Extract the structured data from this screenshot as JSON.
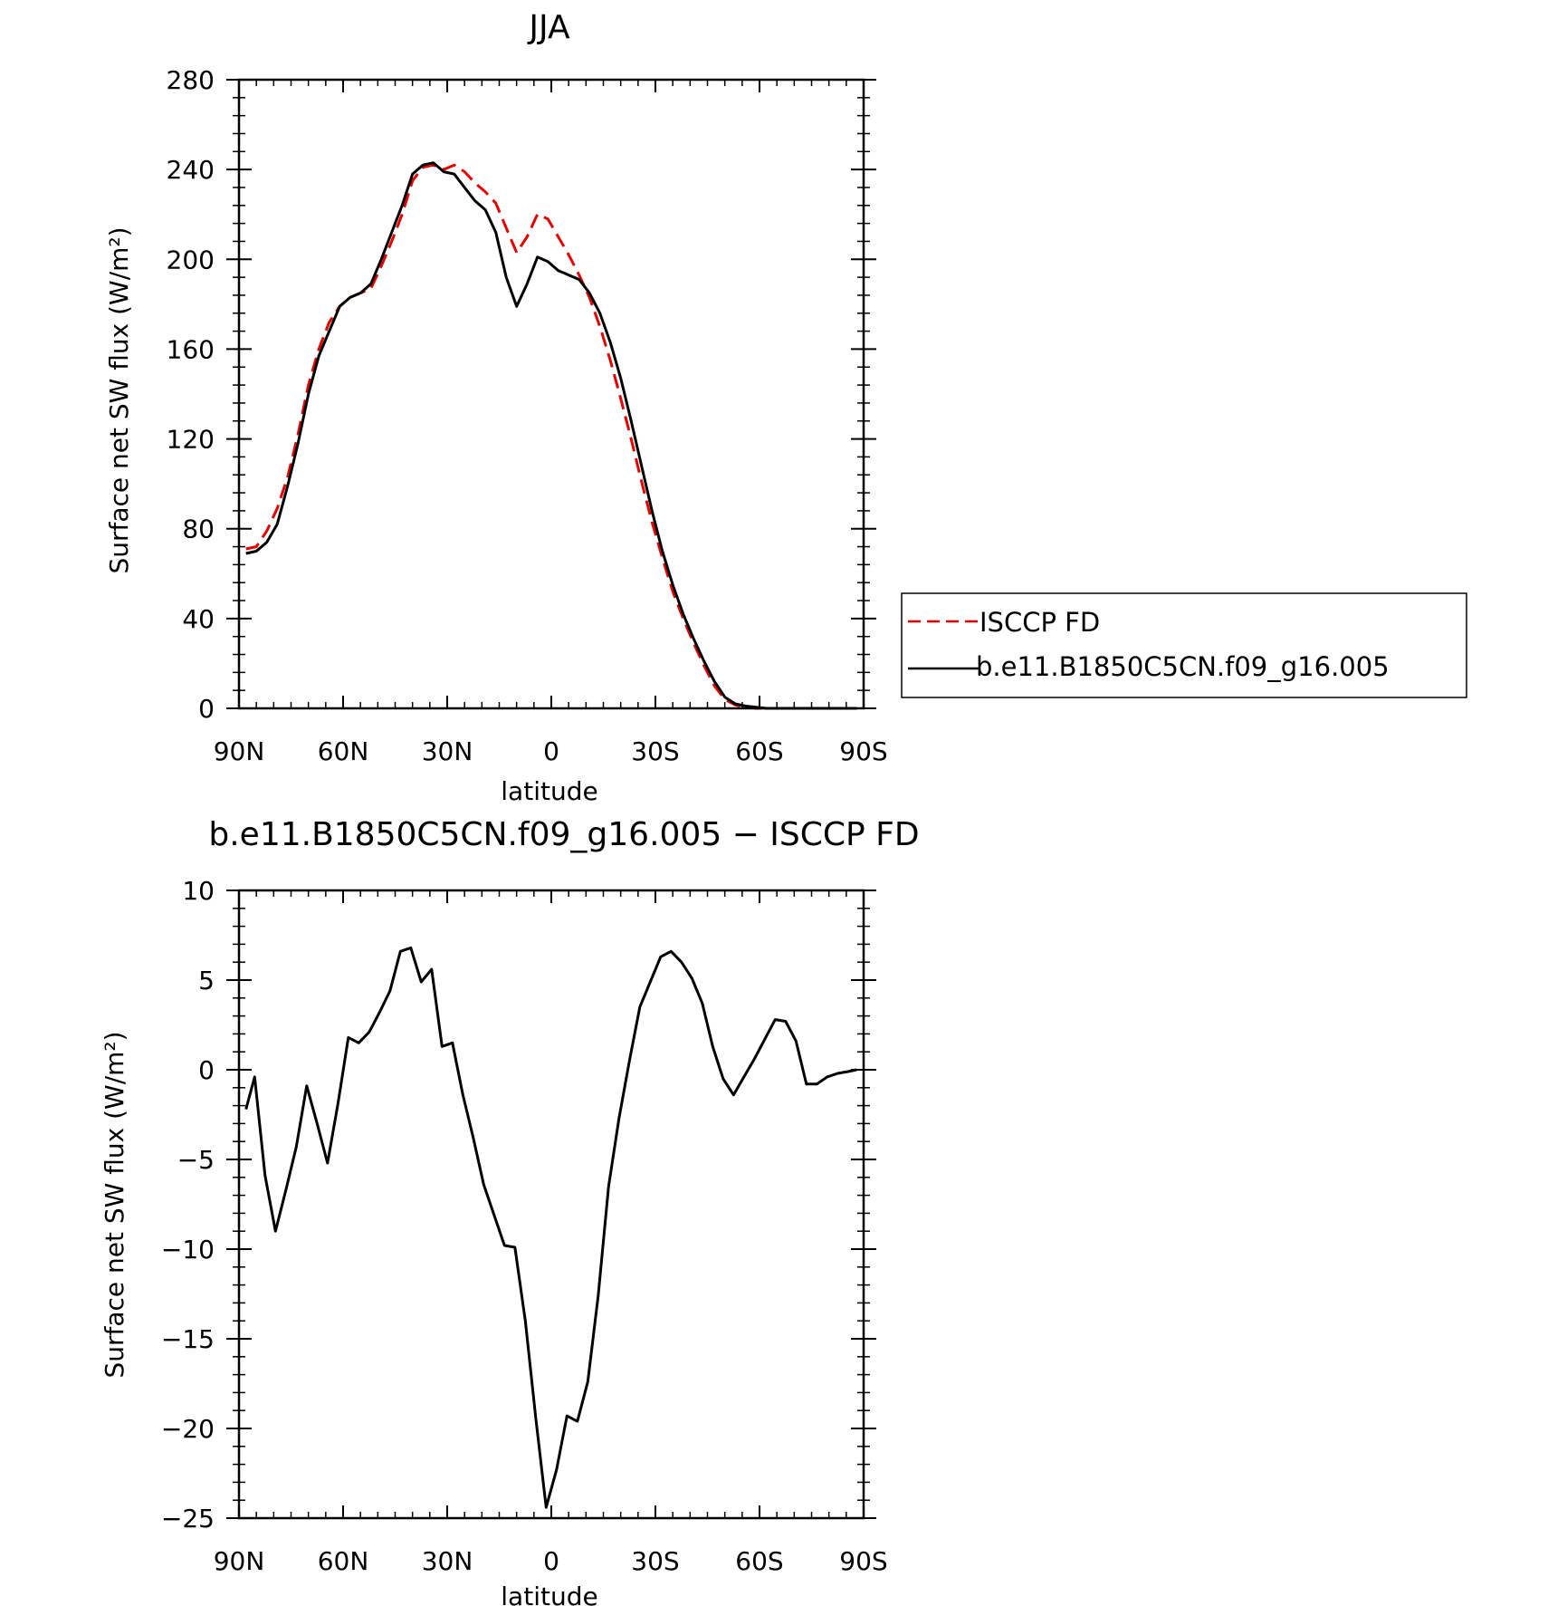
{
  "chart_data": [
    {
      "type": "line",
      "title": "JJA",
      "xlabel": "latitude",
      "ylabel": "Surface net SW flux (W/m²)",
      "xlim": [
        90,
        -90
      ],
      "ylim": [
        0,
        280
      ],
      "x_tick_values": [
        90,
        60,
        30,
        0,
        -30,
        -60,
        -90
      ],
      "x_tick_labels": [
        "90N",
        "60N",
        "30N",
        "0",
        "30S",
        "60S",
        "90S"
      ],
      "y_tick_values": [
        0,
        40,
        80,
        120,
        160,
        200,
        240,
        280
      ],
      "y_tick_labels": [
        "0",
        "40",
        "80",
        "120",
        "160",
        "200",
        "240",
        "280"
      ],
      "grid": false,
      "legend_position": "right",
      "series": [
        {
          "name": "ISCCP FD",
          "color": "#e60000",
          "dash": "dashed",
          "x": [
            88,
            85,
            82,
            79,
            76,
            73,
            70,
            67,
            64,
            61,
            58,
            55,
            52,
            49,
            46,
            43,
            40,
            37,
            34,
            31,
            28,
            25,
            22,
            19,
            16,
            13,
            10,
            7,
            4,
            1,
            -2,
            -5,
            -8,
            -11,
            -14,
            -17,
            -20,
            -23,
            -26,
            -29,
            -32,
            -35,
            -38,
            -41,
            -44,
            -47,
            -50,
            -53,
            -56,
            -59,
            -62,
            -65,
            -68,
            -71,
            -74,
            -77,
            -80,
            -83,
            -86,
            -88
          ],
          "y": [
            71,
            72,
            79,
            89,
            103,
            122,
            144,
            160,
            172,
            179,
            183,
            185,
            187,
            197,
            208,
            220,
            235,
            241,
            242,
            240,
            242,
            239,
            234,
            230,
            225,
            214,
            203,
            210,
            220,
            218,
            210,
            202,
            193,
            183,
            170,
            155,
            138,
            120,
            101,
            83,
            67,
            52,
            40,
            29,
            19,
            10,
            4,
            1.5,
            0.5,
            0,
            0,
            0,
            0,
            0,
            0,
            0,
            0,
            0,
            0,
            0
          ]
        },
        {
          "name": "b.e11.B1850C5CN.f09_g16.005",
          "color": "#000000",
          "dash": "solid",
          "x": [
            88,
            85,
            82,
            79,
            76,
            73,
            70,
            67,
            64,
            61,
            58,
            55,
            52,
            49,
            46,
            43,
            40,
            37,
            34,
            31,
            28,
            25,
            22,
            19,
            16,
            13,
            10,
            7,
            4,
            1,
            -2,
            -5,
            -8,
            -11,
            -14,
            -17,
            -20,
            -23,
            -26,
            -29,
            -32,
            -35,
            -38,
            -41,
            -44,
            -47,
            -50,
            -53,
            -56,
            -59,
            -62,
            -65,
            -68,
            -71,
            -74,
            -77,
            -80,
            -83,
            -86,
            -88
          ],
          "y": [
            69,
            70,
            74,
            82,
            99,
            118,
            140,
            157,
            168,
            179,
            183,
            185,
            189,
            200,
            212,
            224,
            238,
            242,
            243,
            239,
            238,
            232,
            226,
            222,
            212,
            192,
            179,
            189,
            201,
            199,
            195,
            193,
            191,
            185,
            176,
            163,
            147,
            128,
            108,
            88,
            70,
            55,
            42,
            31,
            21,
            12,
            5,
            2,
            1,
            0.5,
            0,
            0,
            0,
            0,
            0,
            0,
            0,
            0,
            0,
            0
          ]
        }
      ]
    },
    {
      "type": "line",
      "title": "b.e11.B1850C5CN.f09_g16.005 − ISCCP FD",
      "xlabel": "latitude",
      "ylabel": "Surface net SW flux (W/m²)",
      "xlim": [
        90,
        -90
      ],
      "ylim": [
        -25,
        10
      ],
      "x_tick_values": [
        90,
        60,
        30,
        0,
        -30,
        -60,
        -90
      ],
      "x_tick_labels": [
        "90N",
        "60N",
        "30N",
        "0",
        "30S",
        "60S",
        "90S"
      ],
      "y_tick_values": [
        10,
        5,
        0,
        -5,
        -10,
        -15,
        -20,
        -25
      ],
      "y_tick_labels": [
        "10",
        "5",
        "0",
        "−5",
        "−10",
        "−15",
        "−20",
        "−25"
      ],
      "grid": false,
      "series": [
        {
          "color": "#000000",
          "dash": "solid",
          "x": [
            88,
            85.5,
            82.5,
            79.5,
            76.5,
            73.5,
            70.5,
            67.5,
            64.5,
            61.5,
            58.5,
            55.5,
            52.5,
            49.5,
            46.5,
            43.5,
            40.5,
            37.5,
            34.5,
            31.5,
            28.5,
            25.5,
            22.5,
            19.5,
            16.5,
            13.5,
            10.5,
            7.5,
            4.5,
            1.5,
            -1.5,
            -4.5,
            -7.5,
            -10.5,
            -13.5,
            -16.5,
            -19.5,
            -22.5,
            -25.5,
            -28.5,
            -31.5,
            -34.5,
            -37.5,
            -40.5,
            -43.5,
            -46.5,
            -49.5,
            -52.5,
            -55.5,
            -58.5,
            -61.5,
            -64.5,
            -67.5,
            -70.5,
            -73.5,
            -76.5,
            -79.5,
            -82.5,
            -85.5,
            -88
          ],
          "y": [
            -2.2,
            -0.4,
            -5.9,
            -9.0,
            -6.7,
            -4.3,
            -0.9,
            -3.0,
            -5.2,
            -1.9,
            1.8,
            1.5,
            2.1,
            3.2,
            4.4,
            6.6,
            6.8,
            4.9,
            5.6,
            1.3,
            1.5,
            -1.4,
            -3.8,
            -6.4,
            -8.1,
            -9.8,
            -9.9,
            -14.0,
            -19.4,
            -24.4,
            -22.3,
            -19.3,
            -19.6,
            -17.4,
            -12.6,
            -6.5,
            -2.7,
            0.5,
            3.5,
            4.9,
            6.3,
            6.6,
            6.0,
            5.1,
            3.7,
            1.3,
            -0.5,
            -1.4,
            -0.4,
            0.6,
            1.7,
            2.8,
            2.7,
            1.6,
            -0.8,
            -0.8,
            -0.4,
            -0.2,
            -0.1,
            0.0
          ]
        }
      ]
    }
  ]
}
